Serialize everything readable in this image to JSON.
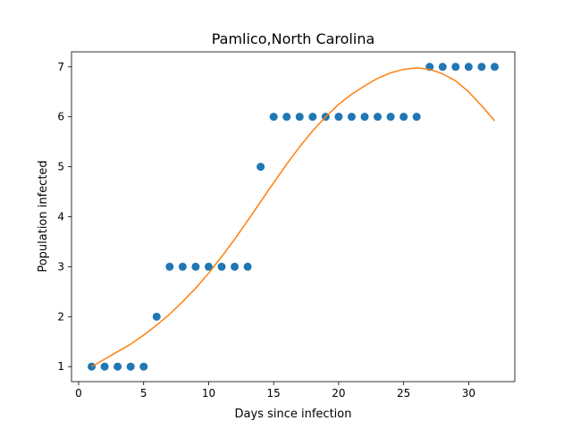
{
  "chart_data": {
    "type": "scatter",
    "title": "Pamlico,North Carolina",
    "xlabel": "Days since infection",
    "ylabel": "Population infected",
    "xlim": [
      -0.55,
      33.55
    ],
    "ylim": [
      0.7,
      7.3
    ],
    "xticks": [
      0,
      5,
      10,
      15,
      20,
      25,
      30
    ],
    "yticks": [
      1,
      2,
      3,
      4,
      5,
      6,
      7
    ],
    "grid": false,
    "legend": "none",
    "series": [
      {
        "kind": "scatter",
        "color": "#1f77b4",
        "x": [
          1,
          2,
          3,
          4,
          5,
          6,
          7,
          8,
          9,
          10,
          11,
          12,
          13,
          14,
          15,
          16,
          17,
          18,
          19,
          20,
          21,
          22,
          23,
          24,
          25,
          26,
          27,
          28,
          29,
          30,
          31,
          32
        ],
        "y": [
          1,
          1,
          1,
          1,
          1,
          2,
          3,
          3,
          3,
          3,
          3,
          3,
          3,
          5,
          6,
          6,
          6,
          6,
          6,
          6,
          6,
          6,
          6,
          6,
          6,
          6,
          7,
          7,
          7,
          7,
          7,
          7
        ]
      },
      {
        "kind": "line",
        "color": "#ff7f0e",
        "x": [
          1,
          2,
          3,
          4,
          5,
          6,
          7,
          8,
          9,
          10,
          11,
          12,
          13,
          14,
          15,
          16,
          17,
          18,
          19,
          20,
          21,
          22,
          23,
          24,
          25,
          26,
          27,
          28,
          29,
          30,
          31,
          32
        ],
        "y": [
          1.0,
          1.15,
          1.3,
          1.45,
          1.63,
          1.83,
          2.05,
          2.3,
          2.57,
          2.87,
          3.2,
          3.55,
          3.92,
          4.3,
          4.68,
          5.05,
          5.4,
          5.72,
          6.0,
          6.25,
          6.45,
          6.62,
          6.77,
          6.88,
          6.95,
          6.98,
          6.95,
          6.86,
          6.72,
          6.5,
          6.22,
          5.92
        ]
      }
    ]
  }
}
